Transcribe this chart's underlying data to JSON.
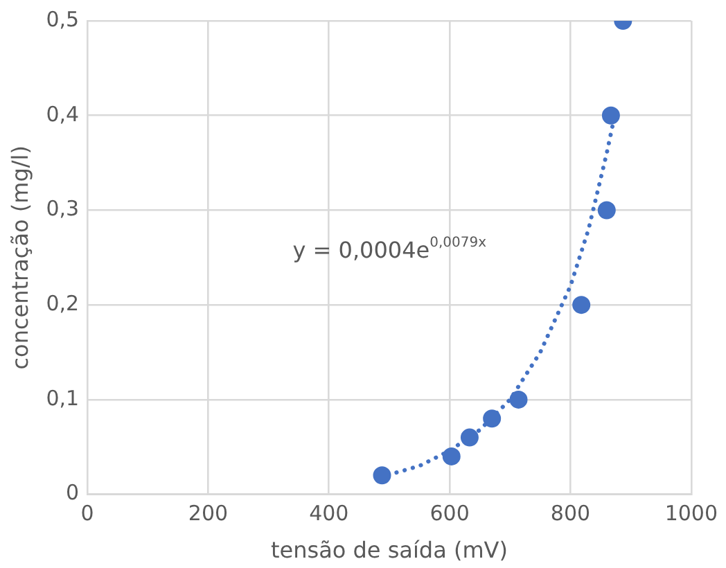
{
  "chart_data": {
    "type": "scatter",
    "xlabel": "tensão de saída (mV)",
    "ylabel": "concentração (mg/l)",
    "xlim": [
      0,
      1000
    ],
    "xticks": [
      0,
      200,
      400,
      600,
      800,
      1000
    ],
    "ylim": [
      0,
      0.5
    ],
    "yticks": [
      0,
      {
        "value": 0.1,
        "label": "0,1"
      },
      {
        "value": 0.2,
        "label": "0,2"
      },
      {
        "value": 0.3,
        "label": "0,3"
      },
      {
        "value": 0.4,
        "label": "0,4"
      },
      {
        "value": 0.5,
        "label": "0,5"
      }
    ],
    "grid": true,
    "legend": false,
    "marker": "circle",
    "annotations": [
      "y = 0,0004e$^{0,0079x}$"
    ],
    "series": [
      {
        "color": "#4472c4",
        "x": [
          488,
          603,
          633,
          670,
          714,
          818,
          860,
          867,
          887
        ],
        "values": [
          0.02,
          0.04,
          0.06,
          0.08,
          0.1,
          0.2,
          0.3,
          0.4,
          0.5
        ]
      },
      {
        "type": "line",
        "color": "#4472c4",
        "line_style": "dotted",
        "marker": "none",
        "x": [
          485,
          550,
          600,
          650,
          700,
          750,
          800,
          830,
          860,
          870
        ],
        "values": [
          0.018,
          0.03,
          0.046,
          0.068,
          0.1,
          0.15,
          0.22,
          0.28,
          0.36,
          0.39
        ]
      }
    ]
  }
}
